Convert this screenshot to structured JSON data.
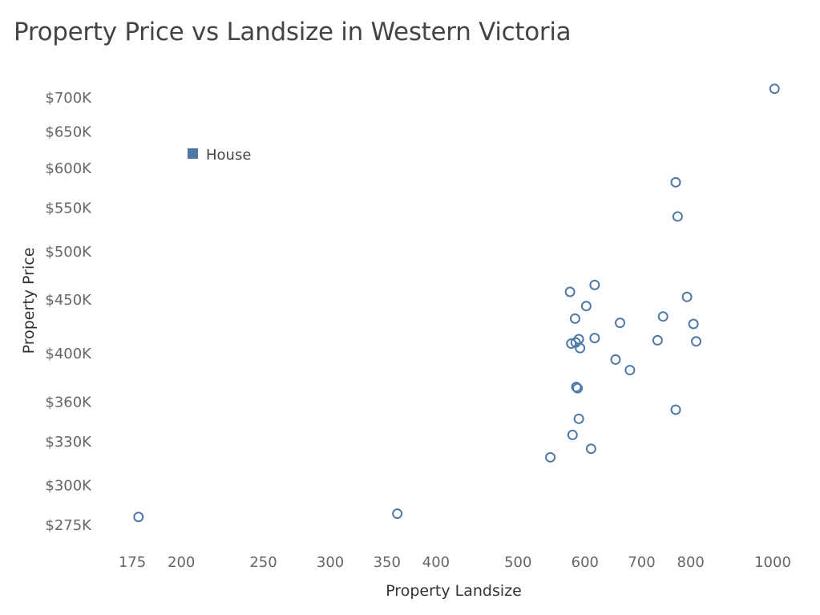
{
  "chart_data": {
    "type": "scatter",
    "title": "Property Price vs Landsize in Western Victoria",
    "xlabel": "Property Landsize",
    "ylabel": "Property Price",
    "x_scale": "log",
    "y_scale": "log",
    "xlim": [
      165,
      1040
    ],
    "ylim": [
      265000,
      730000
    ],
    "x_ticks": [
      175,
      200,
      250,
      300,
      350,
      400,
      500,
      600,
      700,
      800,
      1000
    ],
    "y_ticks": [
      {
        "value": 275000,
        "label": "$275K"
      },
      {
        "value": 300000,
        "label": "$300K"
      },
      {
        "value": 330000,
        "label": "$330K"
      },
      {
        "value": 360000,
        "label": "$360K"
      },
      {
        "value": 400000,
        "label": "$400K"
      },
      {
        "value": 450000,
        "label": "$450K"
      },
      {
        "value": 500000,
        "label": "$500K"
      },
      {
        "value": 550000,
        "label": "$550K"
      },
      {
        "value": 600000,
        "label": "$600K"
      },
      {
        "value": 650000,
        "label": "$650K"
      },
      {
        "value": 700000,
        "label": "$700K"
      }
    ],
    "grid": false,
    "legend_position": "top-left",
    "series": [
      {
        "name": "House",
        "color": "#4e79a7",
        "marker": "hollow-circle",
        "points": [
          [
            178,
            280000
          ],
          [
            360,
            282000
          ],
          [
            546,
            319000
          ],
          [
            580,
            335000
          ],
          [
            610,
            325000
          ],
          [
            590,
            347000
          ],
          [
            586,
            372000
          ],
          [
            588,
            371000
          ],
          [
            576,
            458000
          ],
          [
            616,
            465000
          ],
          [
            602,
            444000
          ],
          [
            584,
            432000
          ],
          [
            590,
            413000
          ],
          [
            578,
            409000
          ],
          [
            585,
            410000
          ],
          [
            592,
            405000
          ],
          [
            616,
            414000
          ],
          [
            660,
            428000
          ],
          [
            652,
            395000
          ],
          [
            678,
            386000
          ],
          [
            731,
            412000
          ],
          [
            742,
            434000
          ],
          [
            792,
            453000
          ],
          [
            806,
            427000
          ],
          [
            812,
            411000
          ],
          [
            768,
            582000
          ],
          [
            772,
            540000
          ],
          [
            768,
            354000
          ],
          [
            1005,
            714000
          ]
        ]
      }
    ]
  }
}
